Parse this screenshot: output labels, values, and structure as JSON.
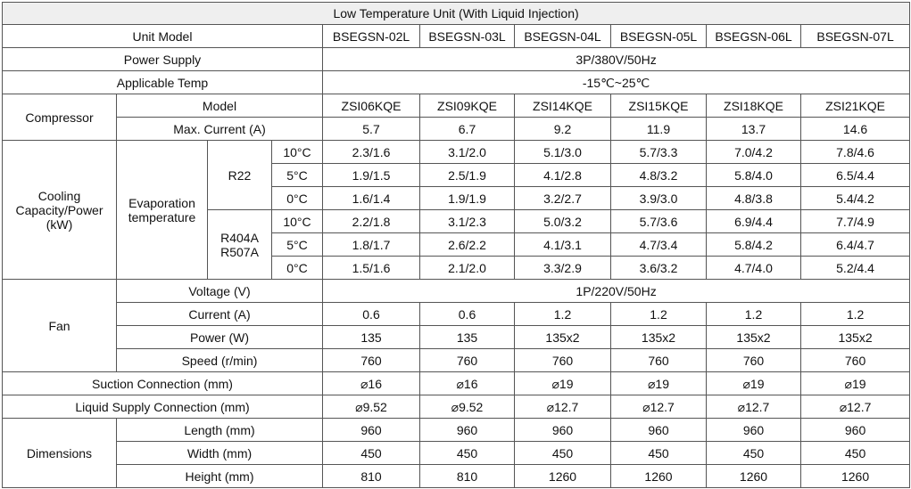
{
  "title": "Low Temperature Unit (With Liquid Injection)",
  "unit_model_label": "Unit Model",
  "models": [
    "BSEGSN-02L",
    "BSEGSN-03L",
    "BSEGSN-04L",
    "BSEGSN-05L",
    "BSEGSN-06L",
    "BSEGSN-07L"
  ],
  "power_supply": {
    "label": "Power Supply",
    "value": "3P/380V/50Hz"
  },
  "applicable_temp": {
    "label": "Applicable Temp",
    "value": "-15℃~25℃"
  },
  "compressor": {
    "label": "Compressor",
    "model_label": "Model",
    "models": [
      "ZSI06KQE",
      "ZSI09KQE",
      "ZSI14KQE",
      "ZSI15KQE",
      "ZSI18KQE",
      "ZSI21KQE"
    ],
    "current_label": "Max. Current (A)",
    "currents": [
      "5.7",
      "6.7",
      "9.2",
      "11.9",
      "13.7",
      "14.6"
    ]
  },
  "cooling": {
    "label": "Cooling Capacity/Power (kW)",
    "evap_label": "Evaporation temperature",
    "r22": {
      "label": "R22",
      "rows": [
        {
          "temp": "10°C",
          "values": [
            "2.3/1.6",
            "3.1/2.0",
            "5.1/3.0",
            "5.7/3.3",
            "7.0/4.2",
            "7.8/4.6"
          ]
        },
        {
          "temp": "5°C",
          "values": [
            "1.9/1.5",
            "2.5/1.9",
            "4.1/2.8",
            "4.8/3.2",
            "5.8/4.0",
            "6.5/4.4"
          ]
        },
        {
          "temp": "0°C",
          "values": [
            "1.6/1.4",
            "1.9/1.9",
            "3.2/2.7",
            "3.9/3.0",
            "4.8/3.8",
            "5.4/4.2"
          ]
        }
      ]
    },
    "r404a": {
      "label_line1": "R404A",
      "label_line2": "R507A",
      "rows": [
        {
          "temp": "10°C",
          "values": [
            "2.2/1.8",
            "3.1/2.3",
            "5.0/3.2",
            "5.7/3.6",
            "6.9/4.4",
            "7.7/4.9"
          ]
        },
        {
          "temp": "5°C",
          "values": [
            "1.8/1.7",
            "2.6/2.2",
            "4.1/3.1",
            "4.7/3.4",
            "5.8/4.2",
            "6.4/4.7"
          ]
        },
        {
          "temp": "0°C",
          "values": [
            "1.5/1.6",
            "2.1/2.0",
            "3.3/2.9",
            "3.6/3.2",
            "4.7/4.0",
            "5.2/4.4"
          ]
        }
      ]
    }
  },
  "fan": {
    "label": "Fan",
    "voltage": {
      "label": "Voltage (V)",
      "value": "1P/220V/50Hz"
    },
    "current": {
      "label": "Current (A)",
      "values": [
        "0.6",
        "0.6",
        "1.2",
        "1.2",
        "1.2",
        "1.2"
      ]
    },
    "power": {
      "label": "Power (W)",
      "values": [
        "135",
        "135",
        "135x2",
        "135x2",
        "135x2",
        "135x2"
      ]
    },
    "speed": {
      "label": "Speed (r/min)",
      "values": [
        "760",
        "760",
        "760",
        "760",
        "760",
        "760"
      ]
    }
  },
  "suction": {
    "label": "Suction Connection (mm)",
    "values": [
      "⌀16",
      "⌀16",
      "⌀19",
      "⌀19",
      "⌀19",
      "⌀19"
    ]
  },
  "liquid": {
    "label": "Liquid Supply Connection (mm)",
    "values": [
      "⌀9.52",
      "⌀9.52",
      "⌀12.7",
      "⌀12.7",
      "⌀12.7",
      "⌀12.7"
    ]
  },
  "dimensions": {
    "label": "Dimensions",
    "length": {
      "label": "Length (mm)",
      "values": [
        "960",
        "960",
        "960",
        "960",
        "960",
        "960"
      ]
    },
    "width": {
      "label": "Width (mm)",
      "values": [
        "450",
        "450",
        "450",
        "450",
        "450",
        "450"
      ]
    },
    "height": {
      "label": "Height (mm)",
      "values": [
        "810",
        "810",
        "1260",
        "1260",
        "1260",
        "1260"
      ]
    }
  }
}
